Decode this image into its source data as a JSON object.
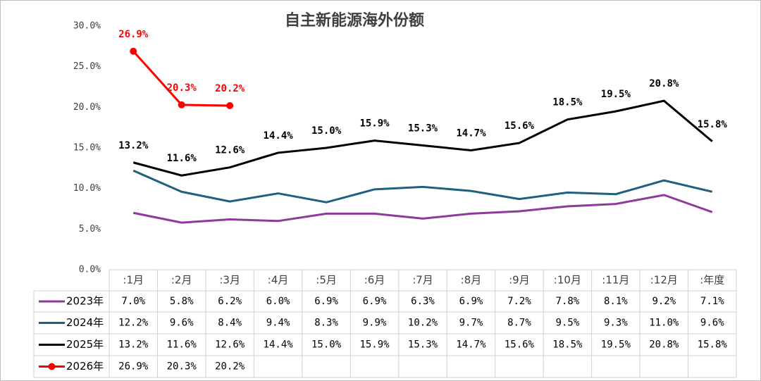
{
  "chart_data": {
    "type": "line",
    "title": "自主新能源海外份额",
    "categories": [
      ":1月",
      ":2月",
      ":3月",
      ":4月",
      ":5月",
      ":6月",
      ":7月",
      ":8月",
      ":9月",
      ":10月",
      ":11月",
      ":12月",
      ":年度"
    ],
    "ylim": [
      0,
      30
    ],
    "yticks": [
      {
        "value": 0,
        "label": "0.0%"
      },
      {
        "value": 5,
        "label": "5.0%"
      },
      {
        "value": 10,
        "label": "10.0%"
      },
      {
        "value": 15,
        "label": "15.0%"
      },
      {
        "value": 20,
        "label": "20.0%"
      },
      {
        "value": 25,
        "label": "25.0%"
      },
      {
        "value": 30,
        "label": "30.0%"
      }
    ],
    "series": [
      {
        "name": "2023年",
        "color": "#8e3a9a",
        "show_labels": false,
        "marker": false,
        "values": [
          7.0,
          5.8,
          6.2,
          6.0,
          6.9,
          6.9,
          6.3,
          6.9,
          7.2,
          7.8,
          8.1,
          9.2,
          7.1
        ],
        "value_labels": [
          "7.0%",
          "5.8%",
          "6.2%",
          "6.0%",
          "6.9%",
          "6.9%",
          "6.3%",
          "6.9%",
          "7.2%",
          "7.8%",
          "8.1%",
          "9.2%",
          "7.1%"
        ]
      },
      {
        "name": "2024年",
        "color": "#1f5f7f",
        "show_labels": false,
        "marker": false,
        "values": [
          12.2,
          9.6,
          8.4,
          9.4,
          8.3,
          9.9,
          10.2,
          9.7,
          8.7,
          9.5,
          9.3,
          11.0,
          9.6
        ],
        "value_labels": [
          "12.2%",
          "9.6%",
          "8.4%",
          "9.4%",
          "8.3%",
          "9.9%",
          "10.2%",
          "9.7%",
          "8.7%",
          "9.5%",
          "9.3%",
          "11.0%",
          "9.6%"
        ]
      },
      {
        "name": "2025年",
        "color": "#000000",
        "show_labels": true,
        "marker": false,
        "values": [
          13.2,
          11.6,
          12.6,
          14.4,
          15.0,
          15.9,
          15.3,
          14.7,
          15.6,
          18.5,
          19.5,
          20.8,
          15.8
        ],
        "value_labels": [
          "13.2%",
          "11.6%",
          "12.6%",
          "14.4%",
          "15.0%",
          "15.9%",
          "15.3%",
          "14.7%",
          "15.6%",
          "18.5%",
          "19.5%",
          "20.8%",
          "15.8%"
        ]
      },
      {
        "name": "2026年",
        "color": "#ff0000",
        "show_labels": true,
        "marker": true,
        "values": [
          26.9,
          20.3,
          20.2,
          null,
          null,
          null,
          null,
          null,
          null,
          null,
          null,
          null,
          null
        ],
        "value_labels": [
          "26.9%",
          "20.3%",
          "20.2%",
          null,
          null,
          null,
          null,
          null,
          null,
          null,
          null,
          null,
          null
        ]
      }
    ]
  }
}
